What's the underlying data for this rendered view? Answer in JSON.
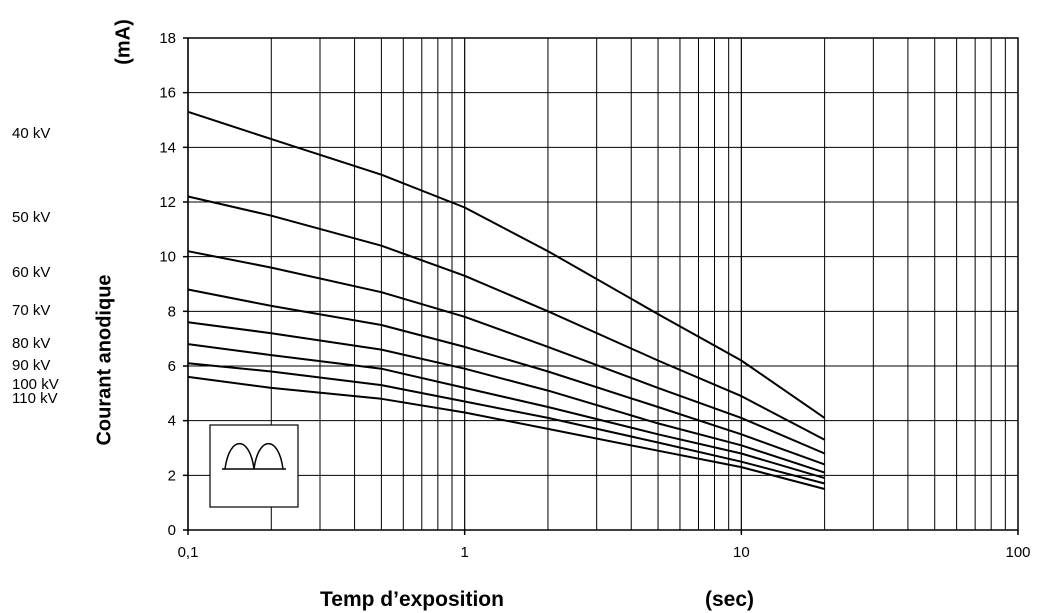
{
  "chart_data": {
    "type": "line",
    "xscale": "log",
    "xlim": [
      0.1,
      100
    ],
    "ylim": [
      0,
      18
    ],
    "yticks": [
      0,
      2,
      4,
      6,
      8,
      10,
      12,
      14,
      16,
      18
    ],
    "yticks_labels": [
      "0",
      "2",
      "4",
      "6",
      "8",
      "10",
      "12",
      "14",
      "16",
      "18"
    ],
    "xticks": [
      0.1,
      1,
      10,
      100
    ],
    "xticks_labels": [
      "0,1",
      "1",
      "10",
      "100"
    ],
    "grid": true,
    "ylabel": "Courant anodique",
    "ylabel_unit": "(mA)",
    "xlabel": "Temp d’exposition",
    "xlabel_unit": "(sec)",
    "legend_placement": "left",
    "inset_icon": "double-half-wave-icon",
    "x": [
      0.1,
      0.2,
      0.5,
      1,
      2,
      5,
      10,
      20
    ],
    "series": [
      {
        "name": "40 kV",
        "values": [
          15.3,
          14.3,
          13.0,
          11.8,
          10.2,
          7.9,
          6.2,
          4.1
        ]
      },
      {
        "name": "50 kV",
        "values": [
          12.2,
          11.5,
          10.4,
          9.3,
          8.0,
          6.2,
          4.9,
          3.3
        ]
      },
      {
        "name": "60 kV",
        "values": [
          10.2,
          9.6,
          8.7,
          7.8,
          6.7,
          5.2,
          4.1,
          2.8
        ]
      },
      {
        "name": "70 kV",
        "values": [
          8.8,
          8.2,
          7.5,
          6.7,
          5.8,
          4.5,
          3.5,
          2.4
        ]
      },
      {
        "name": "80 kV",
        "values": [
          7.6,
          7.2,
          6.6,
          5.9,
          5.1,
          3.9,
          3.1,
          2.1
        ]
      },
      {
        "name": "90 kV",
        "values": [
          6.8,
          6.4,
          5.9,
          5.2,
          4.5,
          3.5,
          2.8,
          1.9
        ]
      },
      {
        "name": "100 kV",
        "values": [
          6.1,
          5.8,
          5.3,
          4.7,
          4.1,
          3.2,
          2.5,
          1.7
        ]
      },
      {
        "name": "110 kV",
        "values": [
          5.6,
          5.2,
          4.8,
          4.3,
          3.7,
          2.9,
          2.3,
          1.5
        ]
      }
    ]
  }
}
